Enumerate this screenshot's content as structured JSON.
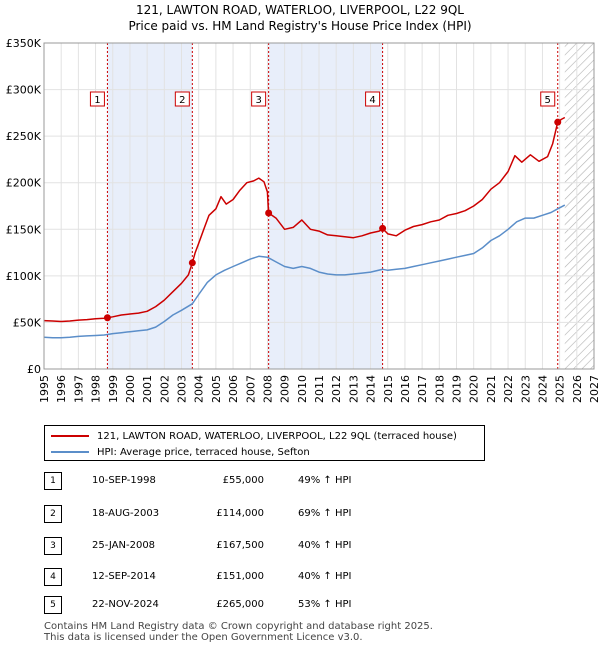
{
  "header": {
    "title_line1": "121, LAWTON ROAD, WATERLOO, LIVERPOOL, L22 9QL",
    "title_line2": "Price paid vs. HM Land Registry's House Price Index (HPI)"
  },
  "chart_data": {
    "type": "line",
    "title": "121, LAWTON ROAD, WATERLOO, LIVERPOOL, L22 9QL — Price paid vs. HM Land Registry's House Price Index (HPI)",
    "xlim": [
      1995,
      2027
    ],
    "ylim": [
      0,
      350000
    ],
    "x_ticks": [
      "1995",
      "1996",
      "1997",
      "1998",
      "1999",
      "2000",
      "2001",
      "2002",
      "2003",
      "2004",
      "2005",
      "2006",
      "2007",
      "2008",
      "2009",
      "2010",
      "2011",
      "2012",
      "2013",
      "2014",
      "2015",
      "2016",
      "2017",
      "2018",
      "2019",
      "2020",
      "2021",
      "2022",
      "2023",
      "2024",
      "2025",
      "2026",
      "2027"
    ],
    "y_ticks": [
      {
        "value": 0,
        "label": "£0"
      },
      {
        "value": 50000,
        "label": "£50K"
      },
      {
        "value": 100000,
        "label": "£100K"
      },
      {
        "value": 150000,
        "label": "£150K"
      },
      {
        "value": 200000,
        "label": "£200K"
      },
      {
        "value": 250000,
        "label": "£250K"
      },
      {
        "value": 300000,
        "label": "£300K"
      },
      {
        "value": 350000,
        "label": "£350K"
      }
    ],
    "shaded_ranges": [
      [
        1998.69,
        2003.63
      ],
      [
        2008.07,
        2014.7
      ]
    ],
    "hatch_from": 2025.3,
    "colors": {
      "red": "#cc0000",
      "blue": "#5b8ec9",
      "shade": "#e8eefa",
      "grid": "#e2e2e2"
    },
    "series": [
      {
        "name": "121, LAWTON ROAD, WATERLOO, LIVERPOOL, L22 9QL (terraced house)",
        "color": "#cc0000",
        "points": [
          [
            1995.0,
            52000
          ],
          [
            1995.5,
            51500
          ],
          [
            1996.0,
            51000
          ],
          [
            1996.5,
            51500
          ],
          [
            1997.0,
            52500
          ],
          [
            1997.5,
            53000
          ],
          [
            1998.0,
            54000
          ],
          [
            1998.5,
            54500
          ],
          [
            1998.69,
            55000
          ],
          [
            1999.0,
            56000
          ],
          [
            1999.5,
            58000
          ],
          [
            2000.0,
            59000
          ],
          [
            2000.5,
            60000
          ],
          [
            2001.0,
            62000
          ],
          [
            2001.5,
            67000
          ],
          [
            2002.0,
            74000
          ],
          [
            2002.5,
            83000
          ],
          [
            2003.0,
            92000
          ],
          [
            2003.4,
            101000
          ],
          [
            2003.63,
            114000
          ],
          [
            2003.8,
            125000
          ],
          [
            2004.0,
            135000
          ],
          [
            2004.3,
            150000
          ],
          [
            2004.6,
            165000
          ],
          [
            2005.0,
            172000
          ],
          [
            2005.3,
            185000
          ],
          [
            2005.6,
            177000
          ],
          [
            2006.0,
            182000
          ],
          [
            2006.4,
            192000
          ],
          [
            2006.8,
            200000
          ],
          [
            2007.2,
            202000
          ],
          [
            2007.5,
            205000
          ],
          [
            2007.8,
            201000
          ],
          [
            2008.0,
            190000
          ],
          [
            2008.07,
            167500
          ],
          [
            2008.5,
            162000
          ],
          [
            2009.0,
            150000
          ],
          [
            2009.5,
            152000
          ],
          [
            2010.0,
            160000
          ],
          [
            2010.5,
            150000
          ],
          [
            2011.0,
            148000
          ],
          [
            2011.5,
            144000
          ],
          [
            2012.0,
            143000
          ],
          [
            2012.5,
            142000
          ],
          [
            2013.0,
            141000
          ],
          [
            2013.5,
            143000
          ],
          [
            2014.0,
            146000
          ],
          [
            2014.5,
            148000
          ],
          [
            2014.7,
            151000
          ],
          [
            2015.0,
            145000
          ],
          [
            2015.5,
            143000
          ],
          [
            2016.0,
            149000
          ],
          [
            2016.5,
            153000
          ],
          [
            2017.0,
            155000
          ],
          [
            2017.5,
            158000
          ],
          [
            2018.0,
            160000
          ],
          [
            2018.5,
            165000
          ],
          [
            2019.0,
            167000
          ],
          [
            2019.5,
            170000
          ],
          [
            2020.0,
            175000
          ],
          [
            2020.5,
            182000
          ],
          [
            2021.0,
            193000
          ],
          [
            2021.5,
            200000
          ],
          [
            2022.0,
            212000
          ],
          [
            2022.4,
            229000
          ],
          [
            2022.8,
            222000
          ],
          [
            2023.3,
            230000
          ],
          [
            2023.8,
            223000
          ],
          [
            2024.3,
            228000
          ],
          [
            2024.6,
            242000
          ],
          [
            2024.89,
            265000
          ],
          [
            2025.1,
            268000
          ],
          [
            2025.3,
            270000
          ]
        ]
      },
      {
        "name": "HPI: Average price, terraced house, Sefton",
        "color": "#5b8ec9",
        "points": [
          [
            1995.0,
            34000
          ],
          [
            1995.5,
            33500
          ],
          [
            1996.0,
            33500
          ],
          [
            1996.5,
            34000
          ],
          [
            1997.0,
            35000
          ],
          [
            1997.5,
            35500
          ],
          [
            1998.0,
            36000
          ],
          [
            1998.5,
            36500
          ],
          [
            1998.69,
            37000
          ],
          [
            1999.0,
            38000
          ],
          [
            1999.5,
            39000
          ],
          [
            2000.0,
            40000
          ],
          [
            2000.5,
            41000
          ],
          [
            2001.0,
            42000
          ],
          [
            2001.5,
            45000
          ],
          [
            2002.0,
            51000
          ],
          [
            2002.5,
            58000
          ],
          [
            2003.0,
            63000
          ],
          [
            2003.63,
            70000
          ],
          [
            2004.0,
            80000
          ],
          [
            2004.5,
            93000
          ],
          [
            2005.0,
            101000
          ],
          [
            2005.5,
            106000
          ],
          [
            2006.0,
            110000
          ],
          [
            2006.5,
            114000
          ],
          [
            2007.0,
            118000
          ],
          [
            2007.5,
            121000
          ],
          [
            2008.0,
            120000
          ],
          [
            2008.5,
            115000
          ],
          [
            2009.0,
            110000
          ],
          [
            2009.5,
            108000
          ],
          [
            2010.0,
            110000
          ],
          [
            2010.5,
            108000
          ],
          [
            2011.0,
            104000
          ],
          [
            2011.5,
            102000
          ],
          [
            2012.0,
            101000
          ],
          [
            2012.5,
            101000
          ],
          [
            2013.0,
            102000
          ],
          [
            2013.5,
            103000
          ],
          [
            2014.0,
            104000
          ],
          [
            2014.7,
            107000
          ],
          [
            2015.0,
            106000
          ],
          [
            2015.5,
            107000
          ],
          [
            2016.0,
            108000
          ],
          [
            2016.5,
            110000
          ],
          [
            2017.0,
            112000
          ],
          [
            2017.5,
            114000
          ],
          [
            2018.0,
            116000
          ],
          [
            2018.5,
            118000
          ],
          [
            2019.0,
            120000
          ],
          [
            2019.5,
            122000
          ],
          [
            2020.0,
            124000
          ],
          [
            2020.5,
            130000
          ],
          [
            2021.0,
            138000
          ],
          [
            2021.5,
            143000
          ],
          [
            2022.0,
            150000
          ],
          [
            2022.5,
            158000
          ],
          [
            2023.0,
            162000
          ],
          [
            2023.5,
            162000
          ],
          [
            2024.0,
            165000
          ],
          [
            2024.5,
            168000
          ],
          [
            2024.89,
            172000
          ],
          [
            2025.1,
            174000
          ],
          [
            2025.3,
            176000
          ]
        ]
      }
    ],
    "sales": [
      {
        "label": "1",
        "x": 1998.69,
        "price": 55000
      },
      {
        "label": "2",
        "x": 2003.63,
        "price": 114000
      },
      {
        "label": "3",
        "x": 2008.07,
        "price": 167500
      },
      {
        "label": "4",
        "x": 2014.7,
        "price": 151000
      },
      {
        "label": "5",
        "x": 2024.89,
        "price": 265000
      }
    ]
  },
  "legend": {
    "items": [
      {
        "label": "121, LAWTON ROAD, WATERLOO, LIVERPOOL, L22 9QL (terraced house)",
        "color": "#cc0000"
      },
      {
        "label": "HPI: Average price, terraced house, Sefton",
        "color": "#5b8ec9"
      }
    ]
  },
  "table": {
    "rows": [
      {
        "num": "1",
        "date": "10-SEP-1998",
        "price": "£55,000",
        "hpi": "49% ↑ HPI"
      },
      {
        "num": "2",
        "date": "18-AUG-2003",
        "price": "£114,000",
        "hpi": "69% ↑ HPI"
      },
      {
        "num": "3",
        "date": "25-JAN-2008",
        "price": "£167,500",
        "hpi": "40% ↑ HPI"
      },
      {
        "num": "4",
        "date": "12-SEP-2014",
        "price": "£151,000",
        "hpi": "40% ↑ HPI"
      },
      {
        "num": "5",
        "date": "22-NOV-2024",
        "price": "£265,000",
        "hpi": "53% ↑ HPI"
      }
    ]
  },
  "footer": {
    "line1": "Contains HM Land Registry data © Crown copyright and database right 2025.",
    "line2": "This data is licensed under the Open Government Licence v3.0."
  }
}
